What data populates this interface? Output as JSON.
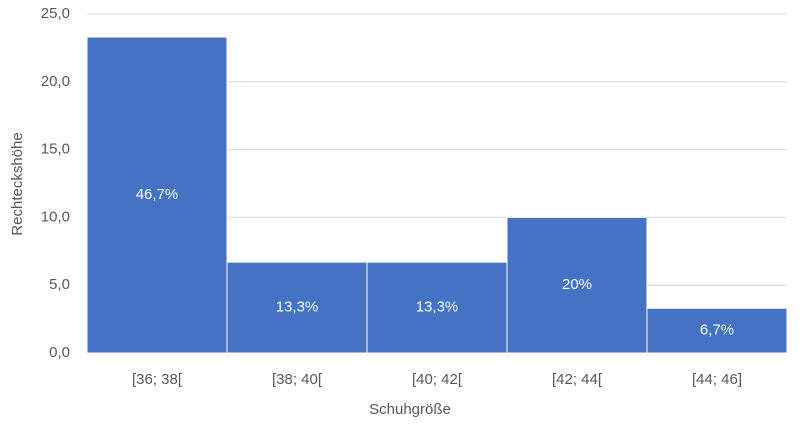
{
  "chart_data": {
    "type": "bar",
    "x_label": "Schuhgröße",
    "y_label": "Rechteckshöhe",
    "categories": [
      "[36; 38[",
      "[38; 40[",
      "[40; 42[",
      "[42; 44[",
      "[44; 46]"
    ],
    "values": [
      23.3,
      6.7,
      6.7,
      10,
      3.3
    ],
    "shares": [
      46.7,
      13.3,
      13.3,
      20,
      6.7
    ],
    "share_labels": [
      "46,7%",
      "13,3%",
      "13,3%",
      "20%",
      "6,7%"
    ],
    "color": "#4472c4",
    "ylim": [
      0,
      25
    ],
    "yticks": [
      {
        "value": 0,
        "label": "0,0"
      },
      {
        "value": 5,
        "label": "5,0"
      },
      {
        "value": 10,
        "label": "10,0"
      },
      {
        "value": 15,
        "label": "15,0"
      },
      {
        "value": 20,
        "label": "20,0"
      },
      {
        "value": 25,
        "label": "25,0"
      }
    ],
    "grid": true
  }
}
